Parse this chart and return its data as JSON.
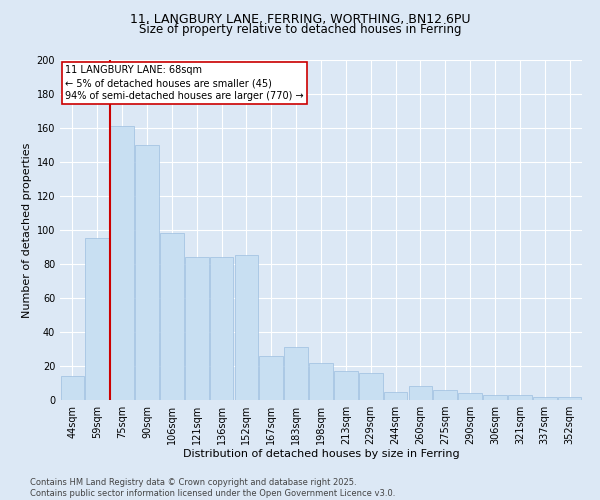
{
  "title1": "11, LANGBURY LANE, FERRING, WORTHING, BN12 6PU",
  "title2": "Size of property relative to detached houses in Ferring",
  "xlabel": "Distribution of detached houses by size in Ferring",
  "ylabel": "Number of detached properties",
  "bar_color": "#c8dff2",
  "bar_edge_color": "#9dbfe0",
  "categories": [
    "44sqm",
    "59sqm",
    "75sqm",
    "90sqm",
    "106sqm",
    "121sqm",
    "136sqm",
    "152sqm",
    "167sqm",
    "183sqm",
    "198sqm",
    "213sqm",
    "229sqm",
    "244sqm",
    "260sqm",
    "275sqm",
    "290sqm",
    "306sqm",
    "321sqm",
    "337sqm",
    "352sqm"
  ],
  "values": [
    14,
    95,
    161,
    150,
    98,
    84,
    84,
    85,
    26,
    31,
    22,
    17,
    16,
    5,
    8,
    6,
    4,
    3,
    3,
    2,
    2
  ],
  "ylim": [
    0,
    200
  ],
  "yticks": [
    0,
    20,
    40,
    60,
    80,
    100,
    120,
    140,
    160,
    180,
    200
  ],
  "vline_index": 2,
  "vline_color": "#cc0000",
  "annotation_text": "11 LANGBURY LANE: 68sqm\n← 5% of detached houses are smaller (45)\n94% of semi-detached houses are larger (770) →",
  "annotation_box_color": "#ffffff",
  "annotation_box_edge_color": "#cc0000",
  "footer_text": "Contains HM Land Registry data © Crown copyright and database right 2025.\nContains public sector information licensed under the Open Government Licence v3.0.",
  "bg_color": "#dce8f5",
  "grid_color": "#ffffff",
  "title_fontsize": 9,
  "subtitle_fontsize": 8.5,
  "axis_fontsize": 8,
  "tick_fontsize": 7,
  "annotation_fontsize": 7,
  "footer_fontsize": 6
}
